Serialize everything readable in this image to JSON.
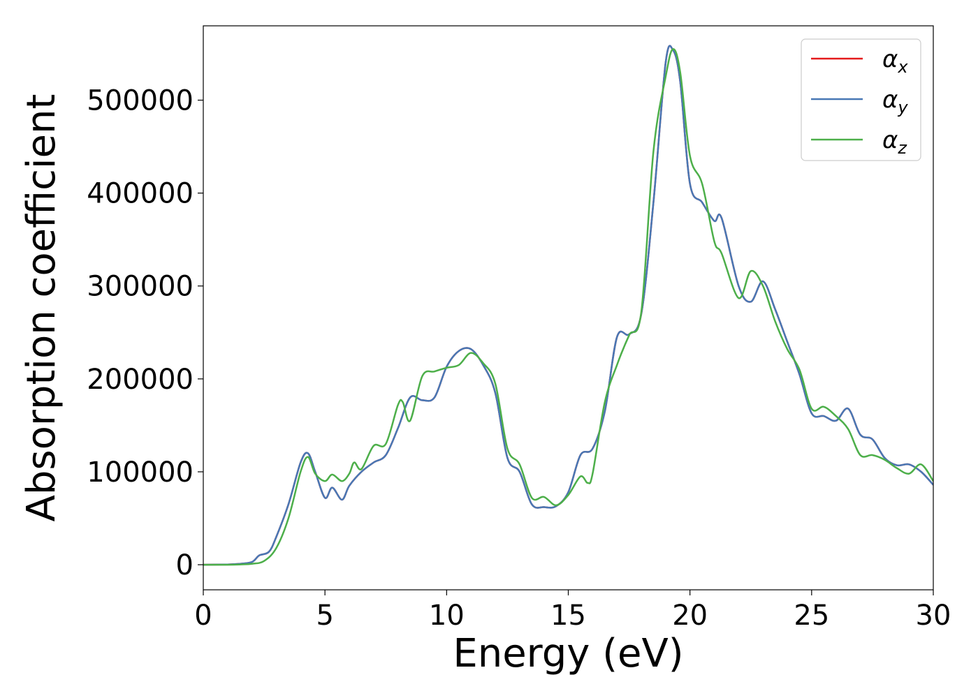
{
  "chart_data": {
    "type": "line",
    "title": "",
    "xlabel": "Energy (eV)",
    "ylabel": "Absorption coefficient",
    "xlim": [
      0,
      30
    ],
    "ylim": [
      -27000,
      580000
    ],
    "xticks": [
      0,
      5,
      10,
      15,
      20,
      25,
      30
    ],
    "xtick_labels": [
      "0",
      "5",
      "10",
      "15",
      "20",
      "25",
      "30"
    ],
    "yticks": [
      0,
      100000,
      200000,
      300000,
      400000,
      500000
    ],
    "ytick_labels": [
      "0",
      "100000",
      "200000",
      "300000",
      "400000",
      "500000"
    ],
    "grid": false,
    "legend_position": "top-right",
    "series": [
      {
        "name": "α",
        "sub": "x",
        "color": "#e41a1c",
        "x": [
          0,
          1,
          1.5,
          2,
          2.3,
          2.7,
          3,
          3.5,
          4,
          4.3,
          4.6,
          5,
          5.3,
          5.7,
          6,
          6.5,
          7,
          7.5,
          8,
          8.5,
          9,
          9.5,
          10,
          10.5,
          11,
          11.5,
          12,
          12.5,
          13,
          13.5,
          14,
          14.5,
          15,
          15.5,
          16,
          16.5,
          17,
          17.5,
          18,
          18.5,
          19,
          19.3,
          19.6,
          20,
          20.5,
          21,
          21.3,
          22,
          22.5,
          23,
          23.5,
          24,
          24.5,
          25,
          25.5,
          26,
          26.5,
          27,
          27.5,
          28,
          28.5,
          29,
          29.5,
          30
        ],
        "y": [
          0,
          300,
          1000,
          3000,
          10000,
          14000,
          30000,
          65000,
          110000,
          120000,
          100000,
          72000,
          83000,
          70000,
          85000,
          100000,
          110000,
          118000,
          147000,
          180000,
          177000,
          180000,
          213000,
          230000,
          232000,
          215000,
          185000,
          115000,
          100000,
          65000,
          62000,
          63000,
          78000,
          118000,
          125000,
          165000,
          245000,
          248000,
          270000,
          390000,
          540000,
          554000,
          520000,
          410000,
          390000,
          370000,
          373000,
          300000,
          283000,
          305000,
          275000,
          240000,
          205000,
          163000,
          160000,
          155000,
          168000,
          140000,
          135000,
          115000,
          107000,
          108000,
          100000,
          86000
        ]
      },
      {
        "name": "α",
        "sub": "y",
        "color": "#4878b5",
        "x": [
          0,
          1,
          1.5,
          2,
          2.3,
          2.7,
          3,
          3.5,
          4,
          4.3,
          4.6,
          5,
          5.3,
          5.7,
          6,
          6.5,
          7,
          7.5,
          8,
          8.5,
          9,
          9.5,
          10,
          10.5,
          11,
          11.5,
          12,
          12.5,
          13,
          13.5,
          14,
          14.5,
          15,
          15.5,
          16,
          16.5,
          17,
          17.5,
          18,
          18.5,
          19,
          19.3,
          19.6,
          20,
          20.5,
          21,
          21.3,
          22,
          22.5,
          23,
          23.5,
          24,
          24.5,
          25,
          25.5,
          26,
          26.5,
          27,
          27.5,
          28,
          28.5,
          29,
          29.5,
          30
        ],
        "y": [
          0,
          300,
          1000,
          3000,
          10000,
          14000,
          30000,
          65000,
          110000,
          120000,
          100000,
          72000,
          83000,
          70000,
          85000,
          100000,
          110000,
          118000,
          147000,
          180000,
          177000,
          180000,
          213000,
          230000,
          232000,
          215000,
          185000,
          115000,
          100000,
          65000,
          62000,
          63000,
          78000,
          118000,
          125000,
          165000,
          245000,
          248000,
          270000,
          390000,
          540000,
          554000,
          520000,
          410000,
          390000,
          370000,
          373000,
          300000,
          283000,
          305000,
          275000,
          240000,
          205000,
          163000,
          160000,
          155000,
          168000,
          140000,
          135000,
          115000,
          107000,
          108000,
          100000,
          86000
        ]
      },
      {
        "name": "α",
        "sub": "z",
        "color": "#4daf4a",
        "x": [
          0,
          1,
          1.5,
          2,
          2.5,
          3,
          3.5,
          4,
          4.3,
          4.6,
          5,
          5.3,
          5.7,
          6,
          6.2,
          6.5,
          7,
          7.5,
          8,
          8.2,
          8.5,
          9,
          9.5,
          10,
          10.5,
          11,
          11.5,
          12,
          12.5,
          13,
          13.5,
          14,
          14.5,
          15,
          15.5,
          15.8,
          16,
          16.5,
          17,
          17.5,
          18,
          18.5,
          19,
          19.3,
          19.6,
          20,
          20.5,
          21,
          21.3,
          22,
          22.5,
          23,
          23.5,
          24,
          24.5,
          25,
          25.5,
          26,
          26.5,
          27,
          27.5,
          28,
          28.5,
          29,
          29.5,
          30
        ],
        "y": [
          0,
          0,
          300,
          1000,
          4000,
          18000,
          50000,
          100000,
          116000,
          98000,
          90000,
          97000,
          90000,
          98000,
          110000,
          103000,
          128000,
          130000,
          172000,
          175000,
          155000,
          203000,
          208000,
          212000,
          215000,
          228000,
          217000,
          195000,
          125000,
          108000,
          72000,
          73000,
          64000,
          75000,
          95000,
          88000,
          98000,
          175000,
          215000,
          247000,
          272000,
          445000,
          525000,
          555000,
          530000,
          440000,
          410000,
          348000,
          335000,
          287000,
          316000,
          300000,
          262000,
          232000,
          210000,
          168000,
          170000,
          160000,
          146000,
          118000,
          118000,
          113000,
          104000,
          98000,
          108000,
          90000
        ]
      }
    ]
  }
}
